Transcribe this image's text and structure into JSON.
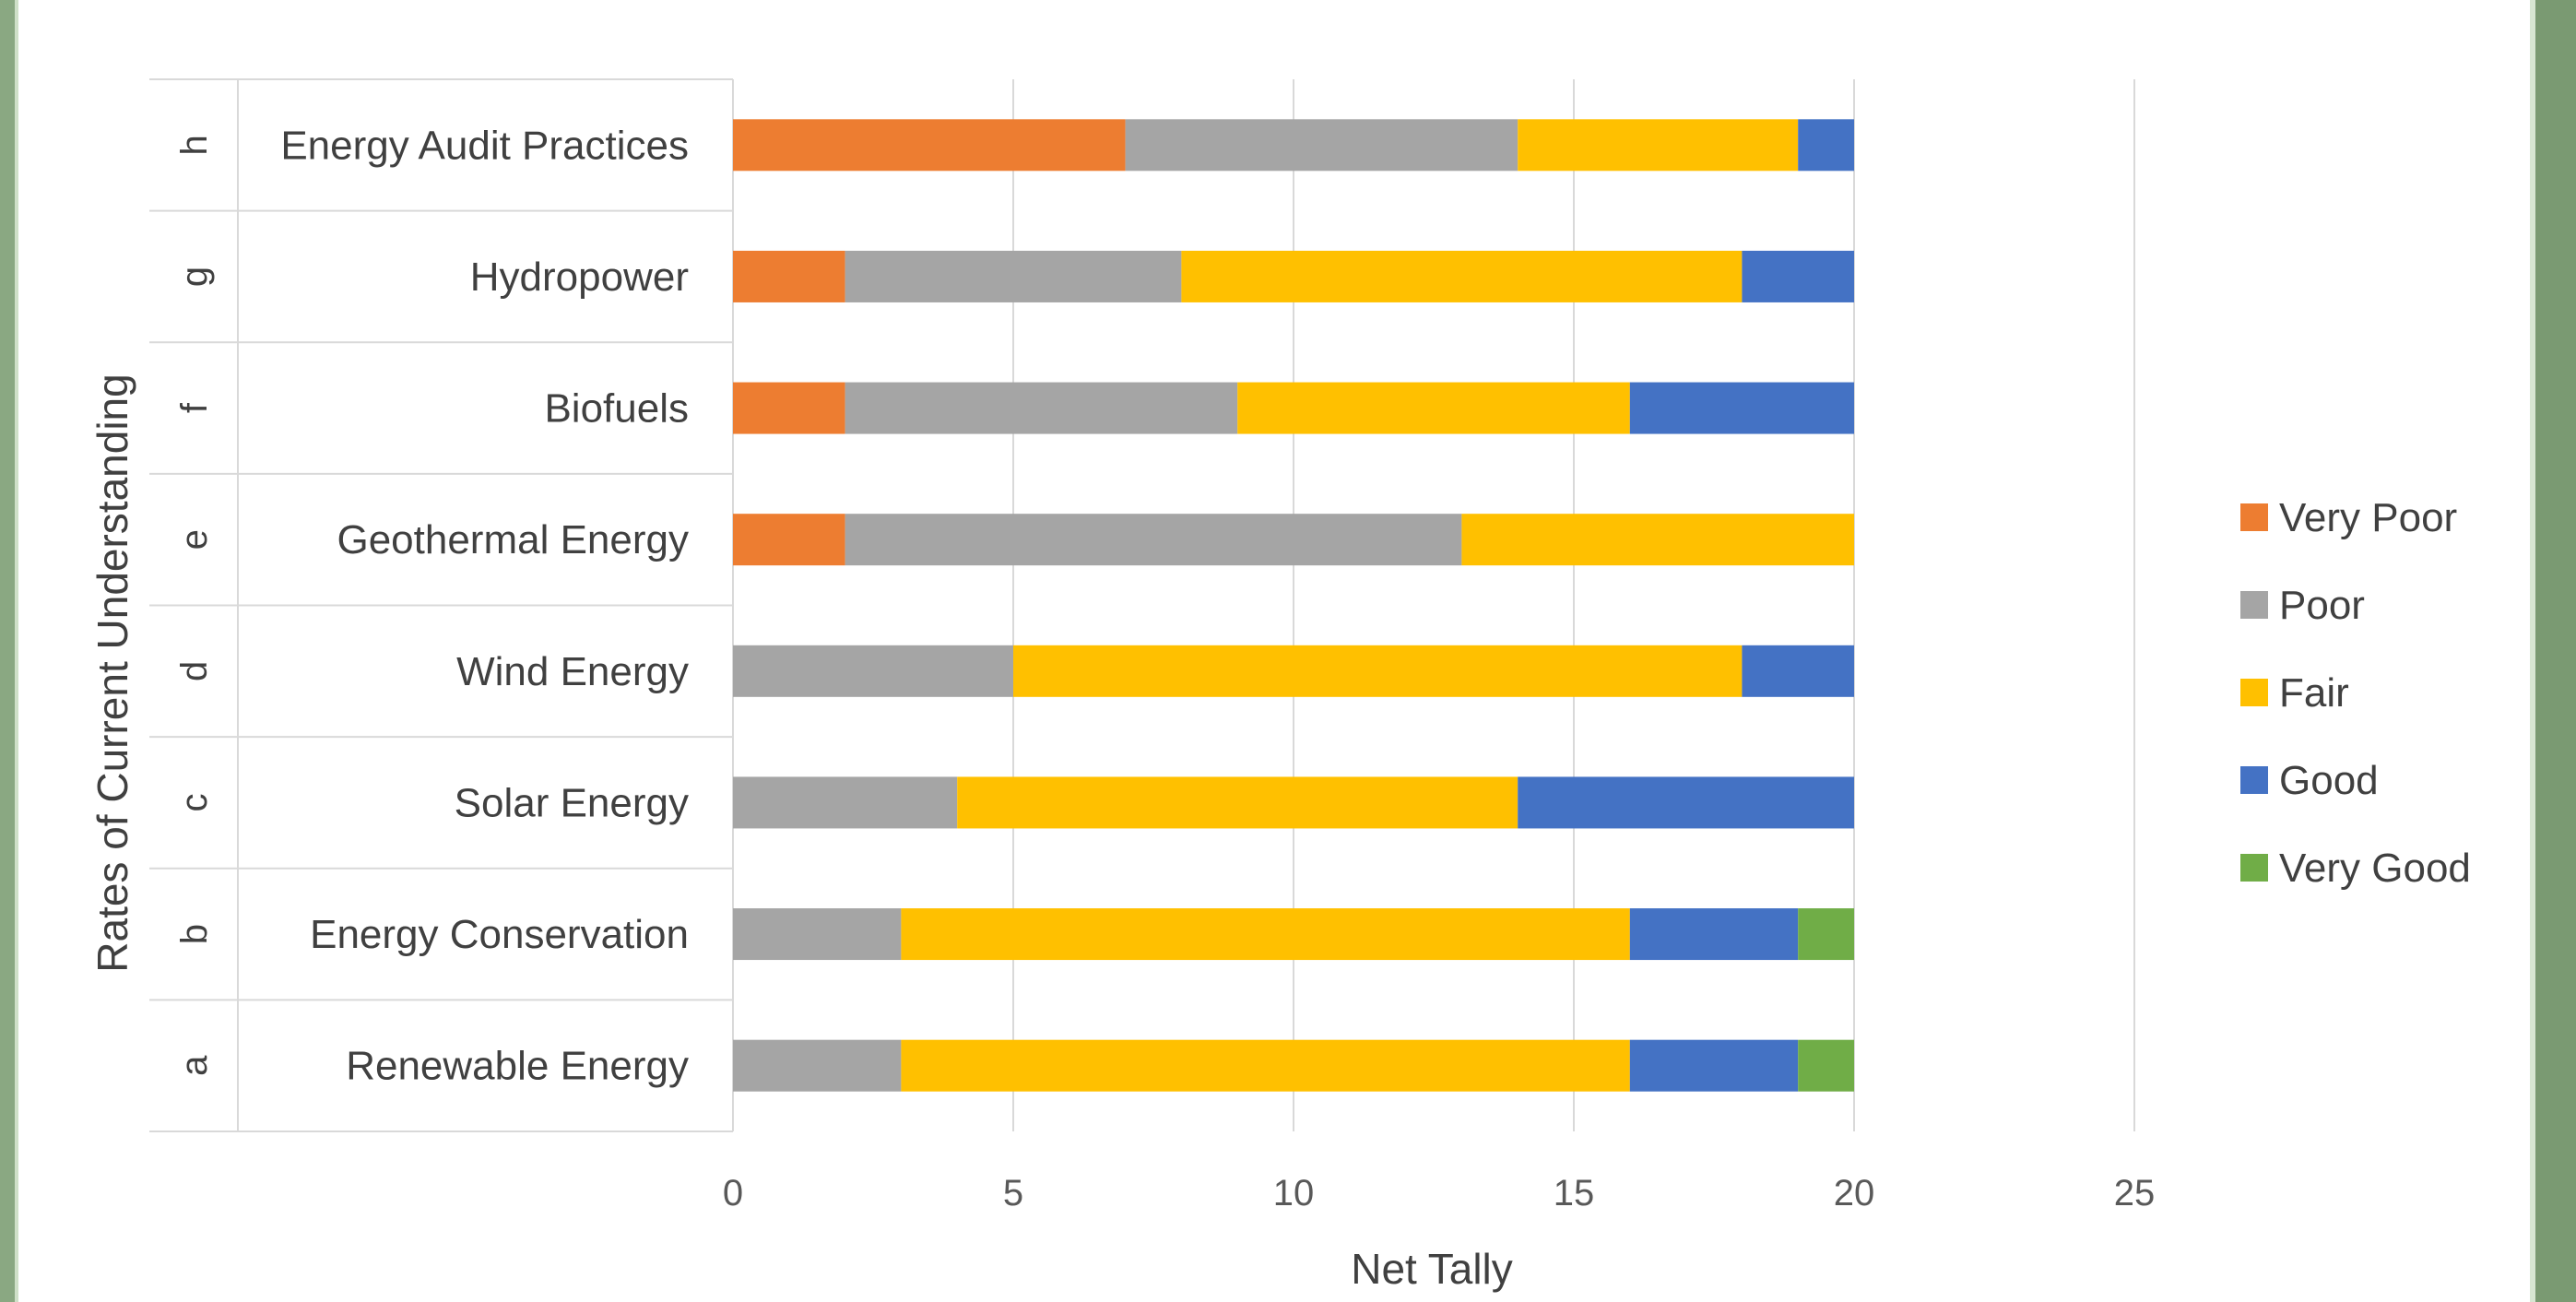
{
  "chart_data": {
    "type": "bar",
    "orientation": "horizontal",
    "stacked": true,
    "title": "",
    "xlabel": "Net Tally",
    "ylabel": "Rates of Current Understanding",
    "xlim": [
      0,
      25
    ],
    "xticks": [
      "0",
      "5",
      "10",
      "15",
      "20",
      "25"
    ],
    "grid": true,
    "legend_position": "right",
    "categories": [
      {
        "letter": "a",
        "label": "Renewable Energy"
      },
      {
        "letter": "b",
        "label": "Energy Conservation"
      },
      {
        "letter": "c",
        "label": "Solar Energy"
      },
      {
        "letter": "d",
        "label": "Wind Energy"
      },
      {
        "letter": "e",
        "label": "Geothermal Energy"
      },
      {
        "letter": "f",
        "label": "Biofuels"
      },
      {
        "letter": "g",
        "label": "Hydropower"
      },
      {
        "letter": "h",
        "label": "Energy Audit Practices"
      }
    ],
    "series": [
      {
        "name": "Very Poor",
        "color": "#ED7D31",
        "values": [
          0,
          0,
          0,
          0,
          2,
          2,
          2,
          7
        ]
      },
      {
        "name": "Poor",
        "color": "#A5A5A5",
        "values": [
          3,
          3,
          4,
          5,
          11,
          7,
          6,
          7
        ]
      },
      {
        "name": "Fair",
        "color": "#FFC000",
        "values": [
          13,
          13,
          10,
          13,
          7,
          7,
          10,
          5
        ]
      },
      {
        "name": "Good",
        "color": "#4472C4",
        "values": [
          3,
          3,
          6,
          2,
          0,
          4,
          2,
          1
        ]
      },
      {
        "name": "Very Good",
        "color": "#70AD47",
        "values": [
          1,
          1,
          0,
          0,
          0,
          0,
          0,
          0
        ]
      }
    ]
  }
}
